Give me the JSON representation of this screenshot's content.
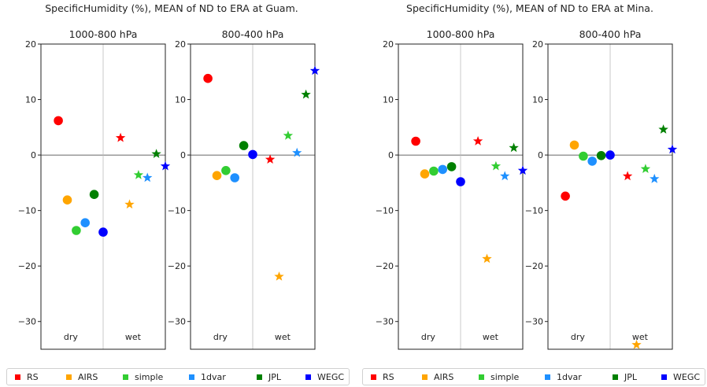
{
  "colors": {
    "RS": "#ff0000",
    "AIRS": "#ffa500",
    "simple": "#32cd32",
    "1dvar": "#1e90ff",
    "JPL": "#008000",
    "WEGC": "#0000ff"
  },
  "chart_data": [
    {
      "type": "scatter",
      "title": "SpecificHumidity (%), MEAN of ND to ERA at Guam.",
      "ylim": [
        -35,
        20
      ],
      "yticks": [
        "20",
        "10",
        "0",
        "−10",
        "−20",
        "−30"
      ],
      "legend_placement": "bottom",
      "legend": [
        "RS",
        "AIRS",
        "simple",
        "1dvar",
        "JPL",
        "WEGC"
      ],
      "panels": [
        {
          "subtitle": "1000-800 hPa",
          "group_labels": [
            "dry",
            "wet"
          ],
          "dry": [
            6.2,
            -8.1,
            -13.6,
            -12.2,
            -7.1,
            -13.9
          ],
          "wet": [
            3.1,
            -8.9,
            -3.6,
            -4.1,
            0.2,
            -2.0
          ]
        },
        {
          "subtitle": "800-400 hPa",
          "group_labels": [
            "dry",
            "wet"
          ],
          "dry": [
            13.8,
            -3.7,
            -2.8,
            -4.1,
            1.7,
            0.1
          ],
          "wet": [
            -0.8,
            -21.9,
            3.5,
            0.4,
            10.9,
            15.2
          ]
        }
      ]
    },
    {
      "type": "scatter",
      "title": "SpecificHumidity (%), MEAN of ND to ERA at Mina.",
      "ylim": [
        -35,
        20
      ],
      "yticks": [
        "20",
        "10",
        "0",
        "−10",
        "−20",
        "−30"
      ],
      "legend_placement": "bottom",
      "legend": [
        "RS",
        "AIRS",
        "simple",
        "1dvar",
        "JPL",
        "WEGC"
      ],
      "panels": [
        {
          "subtitle": "1000-800 hPa",
          "group_labels": [
            "dry",
            "wet"
          ],
          "dry": [
            2.5,
            -3.4,
            -2.9,
            -2.6,
            -2.1,
            -4.8
          ],
          "wet": [
            2.5,
            -18.7,
            -2.0,
            -3.8,
            1.3,
            -2.8
          ]
        },
        {
          "subtitle": "800-400 hPa",
          "group_labels": [
            "dry",
            "wet"
          ],
          "dry": [
            -7.4,
            1.8,
            -0.2,
            -1.1,
            -0.1,
            0.0
          ],
          "wet": [
            -3.8,
            -34.2,
            -2.5,
            -4.3,
            4.6,
            1.0
          ]
        }
      ]
    }
  ]
}
